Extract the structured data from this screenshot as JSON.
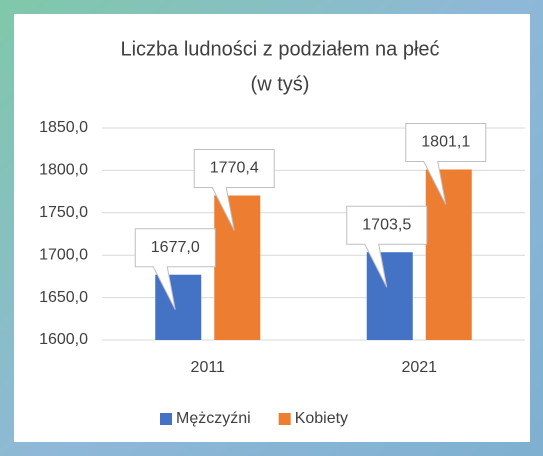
{
  "chart_data": {
    "type": "bar",
    "title": "Liczba ludności z podziałem na płeć",
    "subtitle": "(w tyś)",
    "categories": [
      "2011",
      "2021"
    ],
    "series": [
      {
        "name": "Mężczyźni",
        "color": "#4472c4",
        "values": [
          1677.0,
          1703.5
        ],
        "value_labels": [
          "1677,0",
          "1703,5"
        ]
      },
      {
        "name": "Kobiety",
        "color": "#ed7d31",
        "values": [
          1770.4,
          1801.1
        ],
        "value_labels": [
          "1770,4",
          "1801,1"
        ]
      }
    ],
    "ylim": [
      1600,
      1850
    ],
    "yticks": [
      {
        "value": 1600,
        "label": "1600,0"
      },
      {
        "value": 1650,
        "label": "1650,0"
      },
      {
        "value": 1700,
        "label": "1700,0"
      },
      {
        "value": 1750,
        "label": "1750,0"
      },
      {
        "value": 1800,
        "label": "1800,0"
      },
      {
        "value": 1850,
        "label": "1850,0"
      }
    ],
    "grid": true,
    "legend": "bottom"
  }
}
